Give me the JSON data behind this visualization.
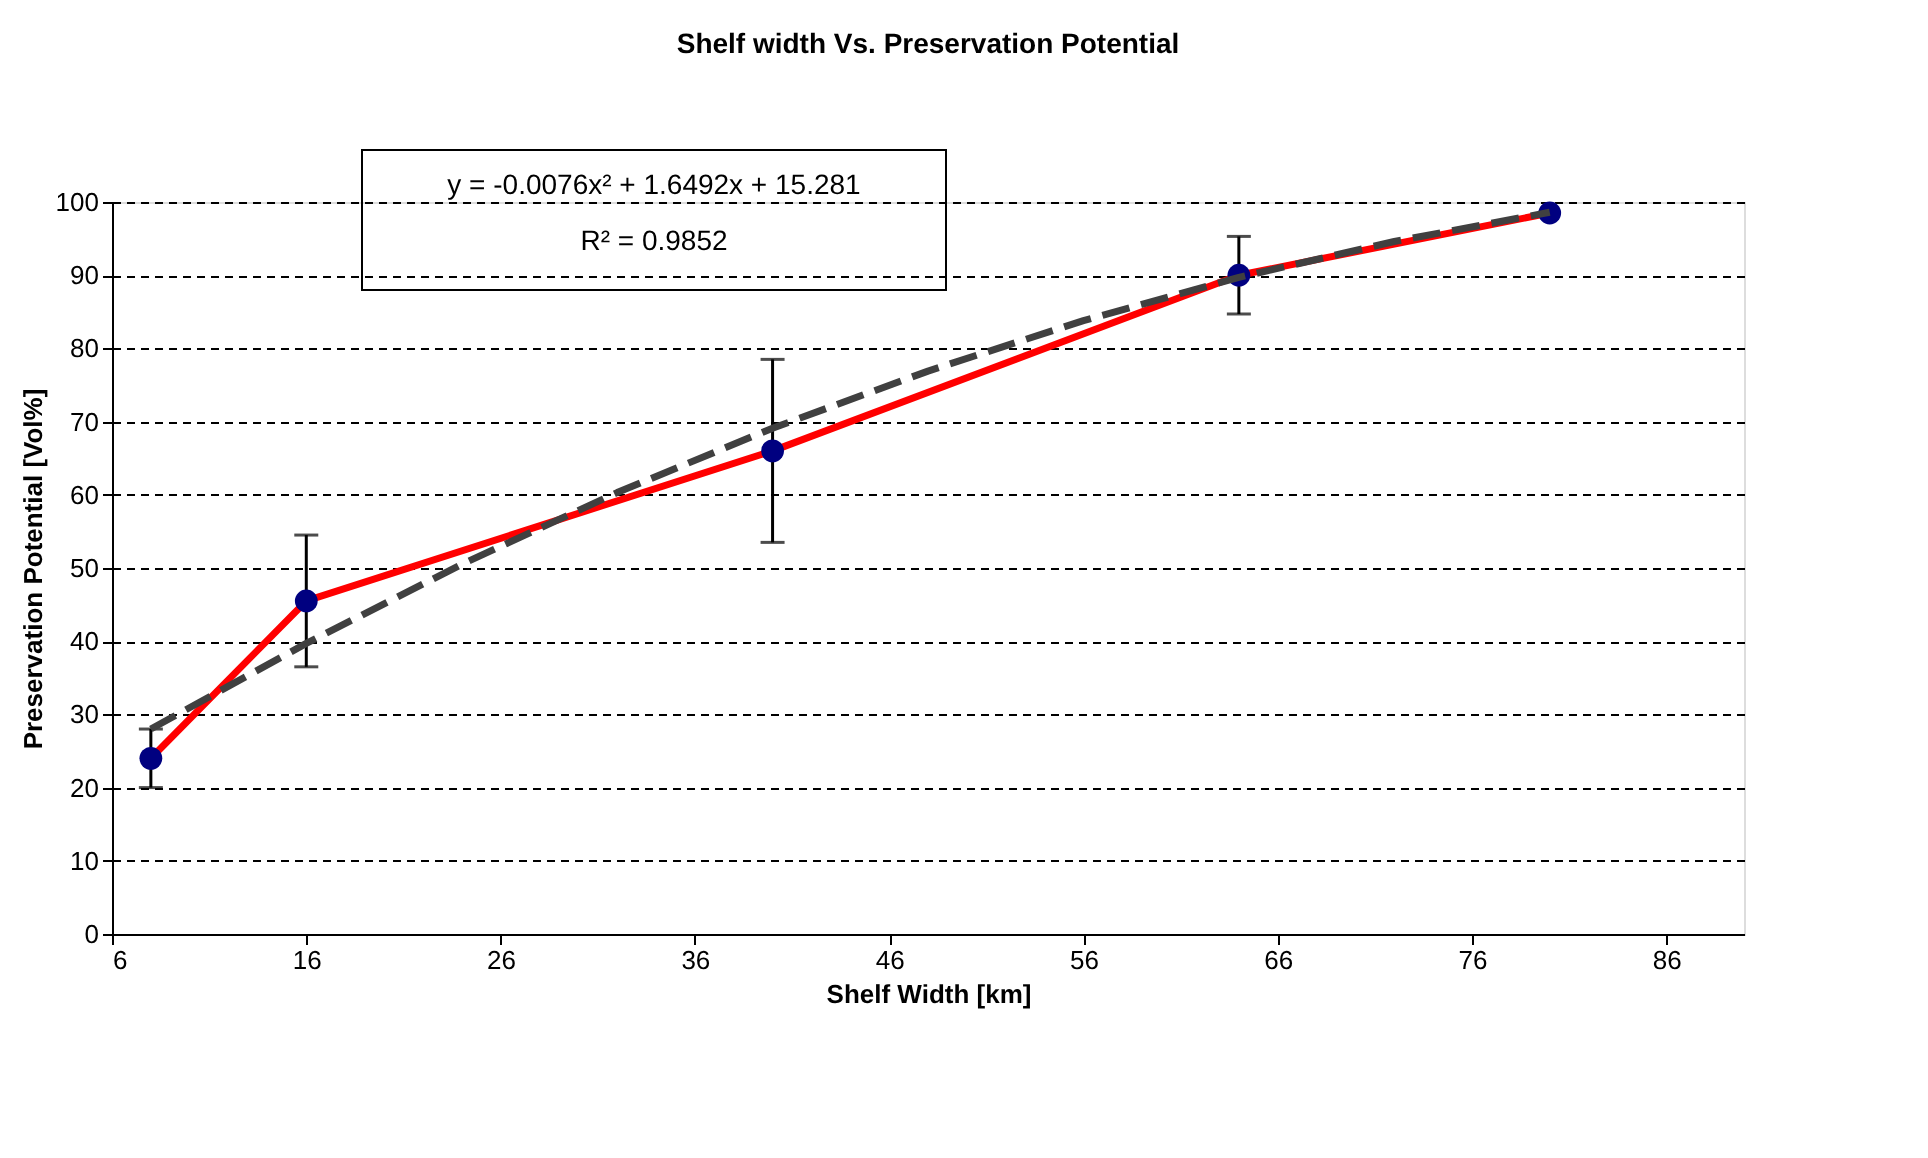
{
  "chart_data": {
    "type": "line",
    "title": "Shelf width Vs. Preservation Potential",
    "xlabel": "Shelf Width [km]",
    "ylabel": "Preservation Potential [Vol%]",
    "x": [
      8,
      16,
      40,
      64,
      80
    ],
    "series": [
      {
        "type": "line",
        "color": "#ff0000",
        "marker": "none",
        "line_style": "solid",
        "values": [
          24,
          45.5,
          66,
          90,
          98.5
        ]
      },
      {
        "type": "scatter",
        "color": "#000080",
        "marker": "circle",
        "values": [
          24,
          45.5,
          66,
          90,
          98.5
        ],
        "errors": [
          4,
          9,
          12.5,
          5.3,
          null
        ]
      },
      {
        "type": "line",
        "color": "#404040",
        "marker": "none",
        "line_style": "dashed",
        "x": [
          8,
          16,
          24,
          32,
          40,
          48,
          56,
          64,
          72,
          80
        ],
        "values": [
          28.0,
          39.7,
          50.5,
          60.3,
          69.1,
          76.9,
          83.8,
          89.7,
          94.6,
          98.6
        ]
      }
    ],
    "annotations": [
      "y = -0.0076x² + 1.6492x + 15.281",
      "R² = 0.9852"
    ],
    "xlim": [
      6,
      90
    ],
    "xticks": [
      6,
      16,
      26,
      36,
      46,
      56,
      66,
      76,
      86
    ],
    "ylim": [
      0,
      100
    ],
    "yticks": [
      0,
      10,
      20,
      30,
      40,
      50,
      60,
      70,
      80,
      90,
      100
    ],
    "grid": "y"
  }
}
